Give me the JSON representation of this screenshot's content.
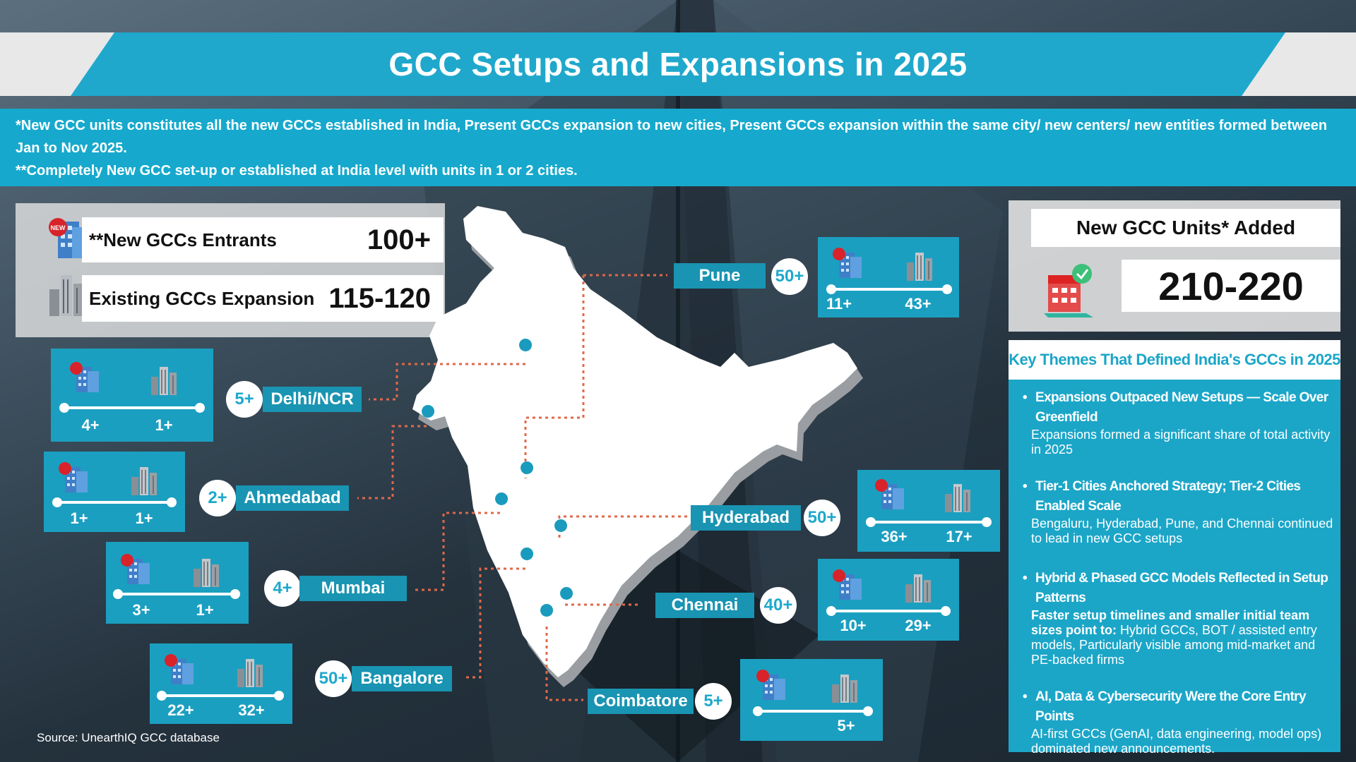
{
  "title": "GCC Setups and Expansions in 2025",
  "notes": [
    "*New GCC units constitutes all the new GCCs established in India, Present GCCs expansion to new cities, Present GCCs expansion within the same city/ new centers/ new entities formed between Jan to Nov 2025.",
    "**Completely New GCC set-up or established at India level with units in 1 or 2 cities."
  ],
  "summary": {
    "new_entrants_label": "**New GCCs Entrants",
    "new_entrants_value": "100+",
    "expansion_label": "Existing GCCs Expansion",
    "expansion_value": "115-120"
  },
  "new_units": {
    "label": "New GCC Units* Added",
    "value": "210-220"
  },
  "badge_text": "NEW",
  "cities": [
    {
      "name": "Pune",
      "total": "50+",
      "new": "11+",
      "existing": "43+"
    },
    {
      "name": "Delhi/NCR",
      "total": "5+",
      "new": "4+",
      "existing": "1+"
    },
    {
      "name": "Ahmedabad",
      "total": "2+",
      "new": "1+",
      "existing": "1+"
    },
    {
      "name": "Hyderabad",
      "total": "50+",
      "new": "36+",
      "existing": "17+"
    },
    {
      "name": "Mumbai",
      "total": "4+",
      "new": "3+",
      "existing": "1+"
    },
    {
      "name": "Chennai",
      "total": "40+",
      "new": "10+",
      "existing": "29+"
    },
    {
      "name": "Bangalore",
      "total": "50+",
      "new": "22+",
      "existing": "32+"
    },
    {
      "name": "Coimbatore",
      "total": "5+",
      "new": "",
      "existing": "5+"
    }
  ],
  "themes": {
    "heading": "Key Themes That Defined India's GCCs in 2025",
    "items": [
      {
        "title": "Expansions Outpaced New Setups — Scale Over Greenfield",
        "body": "Expansions formed a significant share of total activity in 2025"
      },
      {
        "title": "Tier-1 Cities Anchored Strategy; Tier-2 Cities Enabled Scale",
        "body": "Bengaluru, Hyderabad, Pune, and Chennai continued to lead in new GCC setups"
      },
      {
        "title": "Hybrid & Phased GCC Models Reflected in Setup Patterns",
        "body_bold": "Faster setup timelines and smaller initial team sizes point to:",
        "body": " Hybrid GCCs, BOT / assisted entry models, Particularly visible among mid-market and PE-backed firms"
      },
      {
        "title": "AI, Data & Cybersecurity Were the Core Entry Points",
        "body": "AI-first GCCs (GenAI, data engineering, model ops) dominated new announcements."
      }
    ]
  },
  "source": "Source: UnearthIQ GCC database",
  "colors": {
    "accent": "#1fa8cc",
    "connector": "#e0684a",
    "pin": "#1a9bbd"
  }
}
